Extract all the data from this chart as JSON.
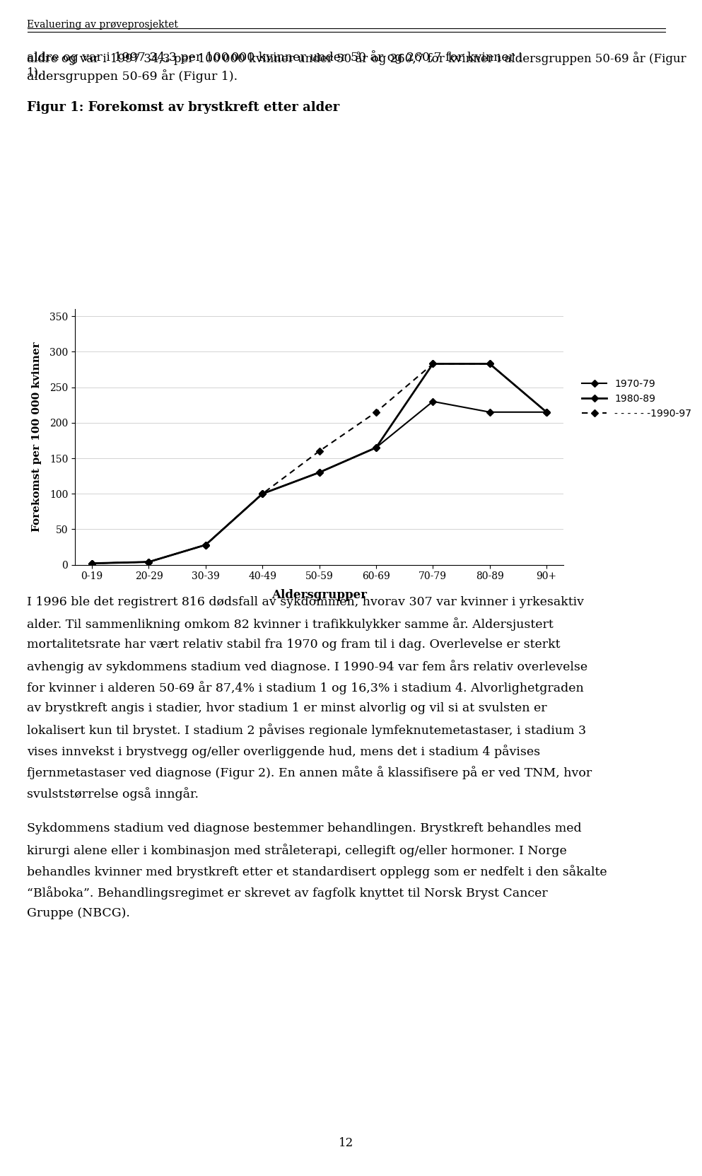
{
  "header_text": "Evaluering av prøveprosjektet",
  "para1": "aldre og var i 1997 34,3 per 100 000 kvinner under 50 år og 260,7 for kvinner i aldersgruppen 50-69 år (Figur 1).",
  "fig_title": "Figur 1: Forekomst av brystkreft etter alder",
  "ylabel": "Forekomst per 100 000 kvinner",
  "xlabel": "Aldersgrupper",
  "yticks": [
    0,
    50,
    100,
    150,
    200,
    250,
    300,
    350
  ],
  "xtick_labels": [
    "0-19",
    "20-29",
    "30-39",
    "40-49",
    "50-59",
    "60-69",
    "70-79",
    "80-89",
    "90+"
  ],
  "series_1970": [
    2,
    4,
    28,
    100,
    130,
    165,
    230,
    215,
    215
  ],
  "series_1980": [
    2,
    4,
    28,
    100,
    130,
    165,
    283,
    283,
    215
  ],
  "series_1990": [
    2,
    4,
    28,
    100,
    160,
    215,
    283,
    283,
    215
  ],
  "legend_labels": [
    "1970-79",
    "1980-89",
    "- - - - - -1990-97"
  ],
  "para2": "I 1996 ble det registrert 816 dødsfall av sykdommen, hvorav 307 var kvinner i yrkesaktiv alder. Til sammenlikning omkom 82 kvinner i trafikkulykker samme år. Aldersjustert mortalitetsrate har vært relativ stabil fra 1970 og fram til i dag. Overlevelse er sterkt avhengig av sykdommens stadium ved diagnose. I 1990-94 var fem års relativ overlevelse for kvinner i alderen 50-69 år 87,4% i stadium 1 og 16,3% i stadium 4. Alvorlighetgraden av brystkreft angis i stadier, hvor stadium 1 er minst alvorlig og vil si at svulsten er lokalisert kun til brystet. I stadium 2 påvises regionale lymfeknutemetastaser, i stadium 3 vises innvekst i brystvegg og/eller overliggende hud, mens det i stadium 4 påvises fjernmetastaser ved diagnose (Figur 2). En annen måte å klassifisere på er ved TNM, hvor svulststørrelse også inngår.",
  "para3": "Sykdommens stadium ved diagnose bestemmer behandlingen. Brystkreft behandles med kirurgi alene eller i kombinasjon med stråleterapi, cellegift og/eller hormoner. I Norge behandles kvinner med brystkreft etter et standardisert opplegg som er nedfelt i den såkalte “Blåboka”. Behandlingsregimet er skrevet av fagfolk knyttet til Norsk Bryst Cancer Gruppe (NBCG).",
  "page_number": "12",
  "background_color": "#ffffff",
  "text_color": "#000000",
  "line_color_1970": "#000000",
  "line_color_1980": "#000000",
  "line_color_1990": "#000000",
  "marker_style_1970": "D",
  "marker_style_1980": "D",
  "marker_style_1990": "D",
  "line_style_1990": "--"
}
